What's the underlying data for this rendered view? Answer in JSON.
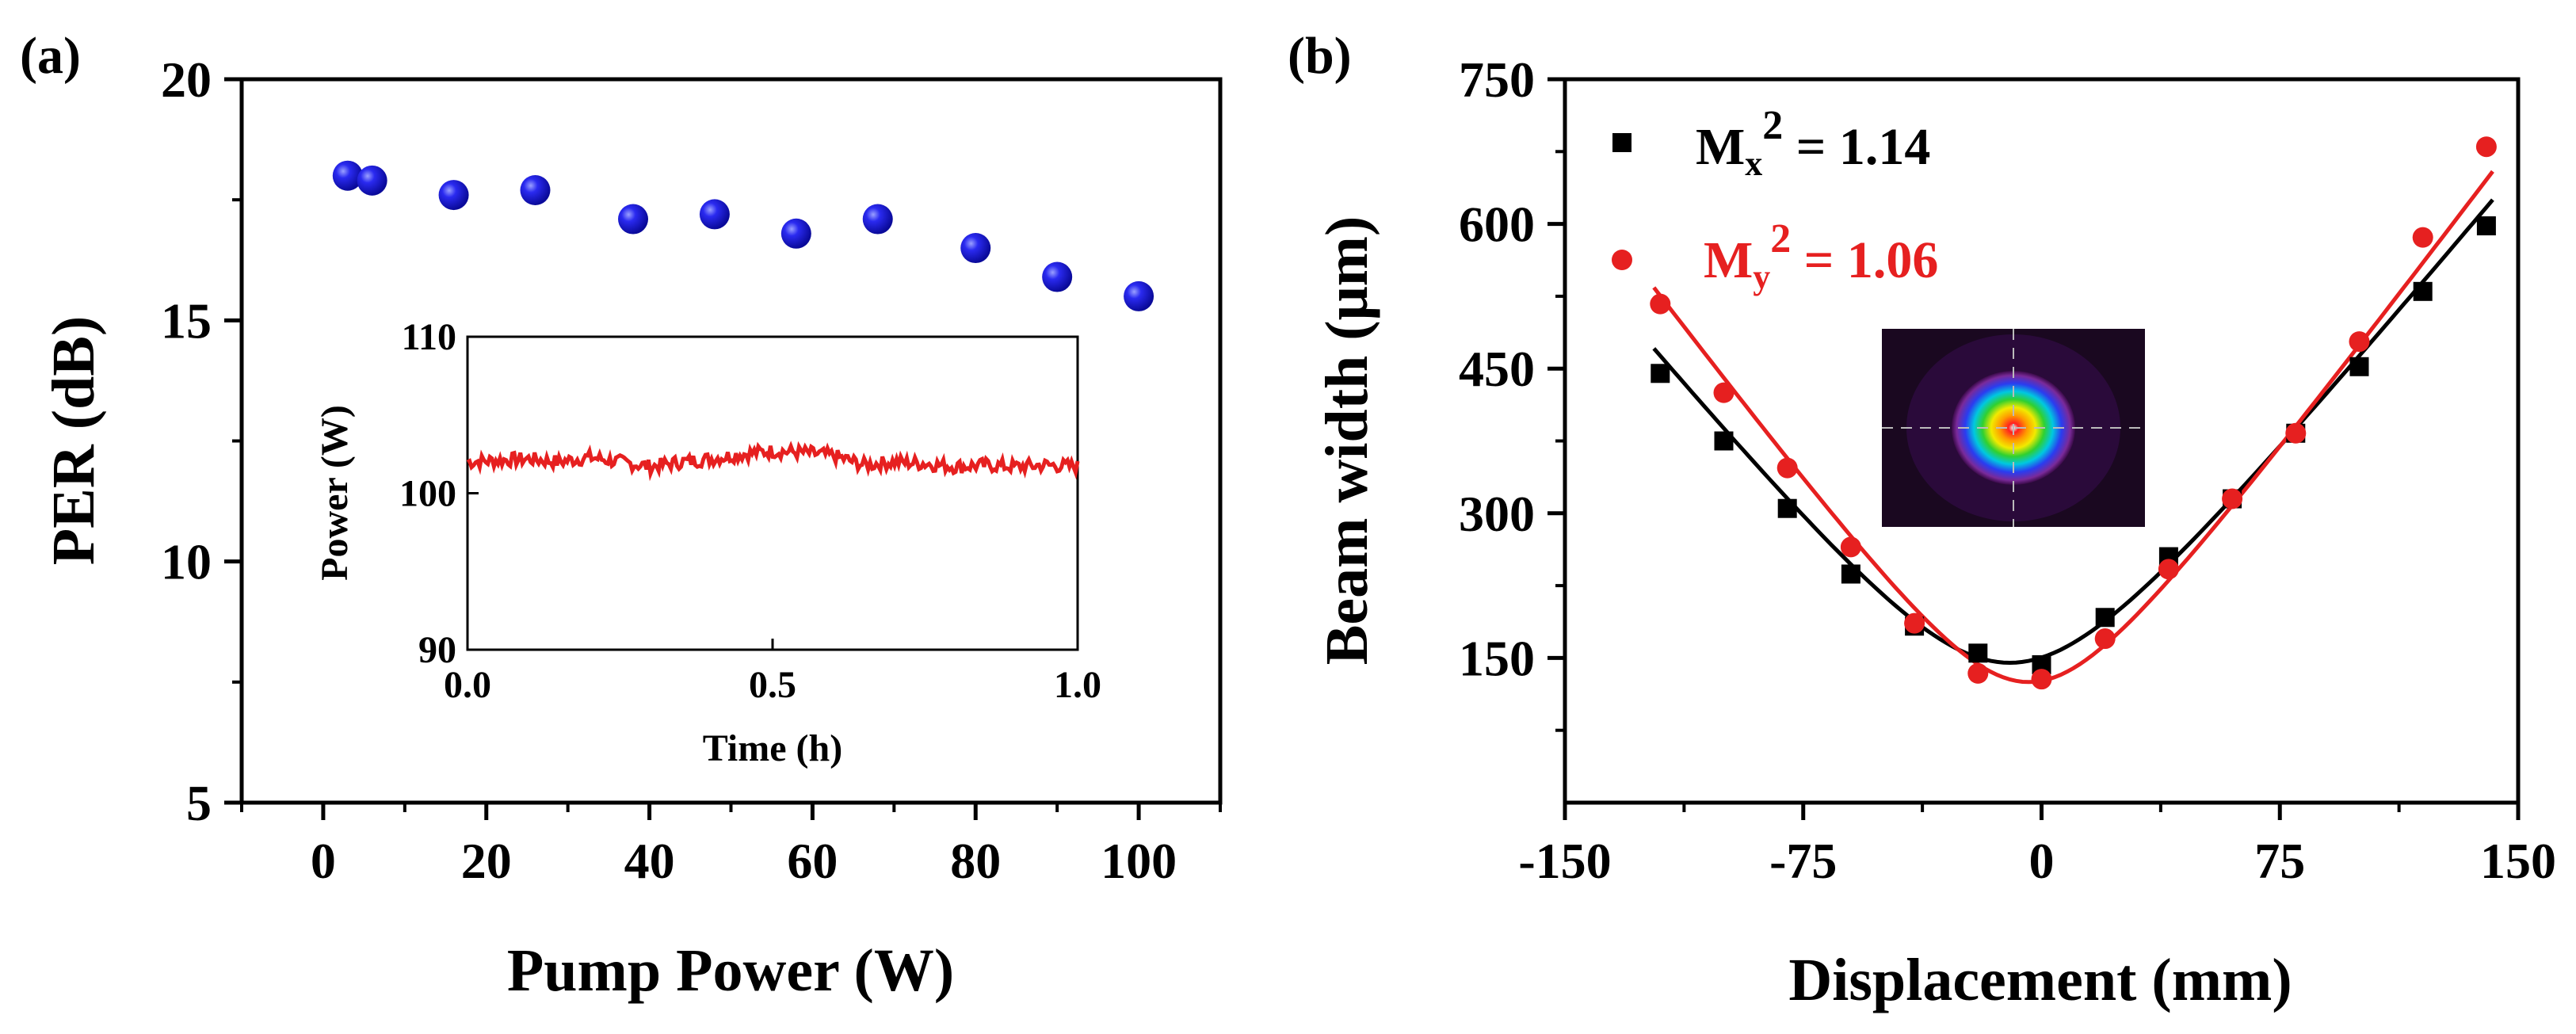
{
  "chart_data": [
    {
      "panel": "(a)",
      "type": "scatter",
      "xlabel": "Pump Power (W)",
      "ylabel": "PER (dB)",
      "xlim": [
        -10,
        110
      ],
      "ylim": [
        5,
        20
      ],
      "xticks": [
        0,
        20,
        40,
        60,
        80,
        100
      ],
      "yticks": [
        5,
        10,
        15,
        20
      ],
      "series": [
        {
          "name": "PER",
          "color": "#1515e6",
          "marker": "sphere",
          "x": [
            3,
            6,
            16,
            26,
            38,
            48,
            58,
            68,
            80,
            90,
            100
          ],
          "y": [
            18.0,
            17.9,
            17.6,
            17.7,
            17.1,
            17.2,
            16.8,
            17.1,
            16.5,
            15.9,
            15.5
          ]
        }
      ],
      "inset": {
        "type": "line",
        "xlabel": "Time (h)",
        "ylabel": "Power (W)",
        "xlim": [
          0,
          1
        ],
        "ylim": [
          90,
          110
        ],
        "xticks": [
          0.0,
          0.5,
          1.0
        ],
        "xtick_labels": [
          "0.0",
          "0.5",
          "1.0"
        ],
        "yticks": [
          90,
          100,
          110
        ],
        "series": [
          {
            "name": "Power",
            "color": "#e62020",
            "x": [
              0.0,
              0.05,
              0.1,
              0.15,
              0.2,
              0.25,
              0.3,
              0.35,
              0.4,
              0.45,
              0.5,
              0.55,
              0.6,
              0.65,
              0.7,
              0.75,
              0.8,
              0.85,
              0.9,
              0.95,
              1.0
            ],
            "y": [
              102.0,
              102.1,
              102.2,
              102.0,
              102.3,
              102.0,
              101.7,
              102.0,
              102.2,
              102.5,
              102.7,
              102.6,
              102.4,
              101.8,
              102.0,
              101.9,
              101.7,
              101.8,
              101.7,
              101.8,
              101.7
            ]
          }
        ]
      }
    },
    {
      "panel": "(b)",
      "type": "scatter",
      "xlabel": "Displacement (mm)",
      "ylabel": "Beam width (μm)",
      "xlim": [
        -150,
        150
      ],
      "ylim": [
        0,
        750
      ],
      "xticks": [
        -150,
        -75,
        0,
        75,
        150
      ],
      "yticks": [
        150,
        300,
        450,
        600,
        750
      ],
      "legend_location": "top-left",
      "series": [
        {
          "name": "Mx² = 1.14",
          "color": "#000000",
          "marker": "square",
          "x": [
            -120,
            -100,
            -80,
            -60,
            -40,
            -20,
            0,
            20,
            40,
            60,
            80,
            100,
            120,
            140
          ],
          "y": [
            445,
            375,
            305,
            237,
            183,
            155,
            143,
            192,
            255,
            315,
            383,
            452,
            530,
            598
          ],
          "fit": {
            "x0": -10,
            "w0": 145,
            "k": 4.0
          }
        },
        {
          "name": "My² = 1.06",
          "color": "#e62020",
          "marker": "circle",
          "x": [
            -120,
            -100,
            -80,
            -60,
            -40,
            -20,
            0,
            20,
            40,
            60,
            80,
            100,
            120,
            140
          ],
          "y": [
            517,
            425,
            347,
            265,
            186,
            134,
            128,
            170,
            242,
            315,
            383,
            478,
            586,
            680
          ],
          "fit": {
            "x0": -4,
            "w0": 125,
            "k": 4.4
          }
        }
      ],
      "legend": [
        {
          "base": "M",
          "sub": "x",
          "sup": "2",
          "value": " = 1.14",
          "text_color": "#000000"
        },
        {
          "base": "M",
          "sub": "y",
          "sup": "2",
          "value": " = 1.06",
          "text_color": "#e62020"
        }
      ],
      "inset": "beam-profile-image"
    }
  ]
}
